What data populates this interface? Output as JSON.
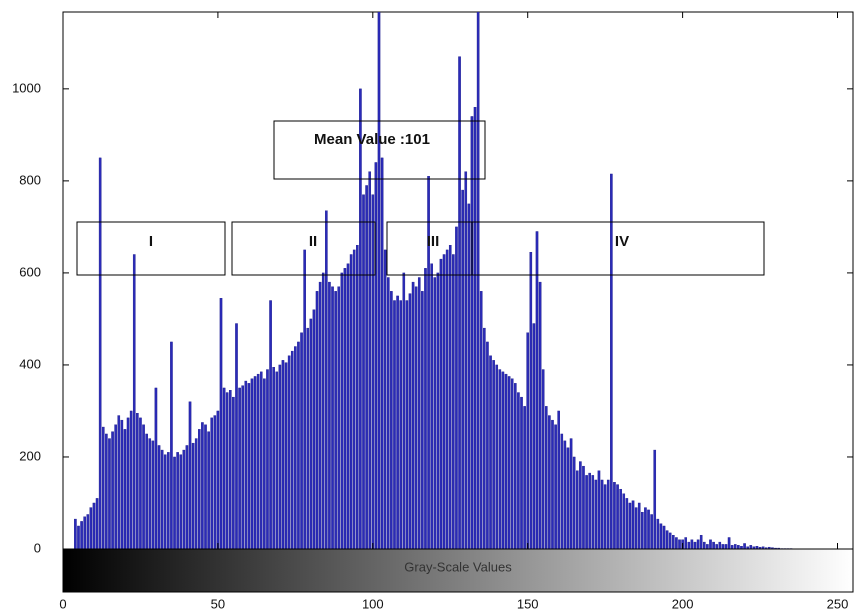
{
  "chart_data": {
    "type": "histogram",
    "xlabel": "Gray-Scale Values",
    "annotations": [
      {
        "text": "Mean Value :101"
      },
      {
        "text": "I"
      },
      {
        "text": "II"
      },
      {
        "text": "III"
      },
      {
        "text": "IV"
      }
    ],
    "color": "#2b2bb8",
    "xlim": [
      0,
      255
    ],
    "ylim": [
      0,
      1167
    ],
    "xticks": [
      0,
      50,
      100,
      150,
      200,
      250
    ],
    "yticks": [
      0,
      200,
      400,
      600,
      800,
      1000
    ],
    "x": [
      4,
      5,
      6,
      7,
      8,
      9,
      10,
      11,
      12,
      13,
      14,
      15,
      16,
      17,
      18,
      19,
      20,
      21,
      22,
      23,
      24,
      25,
      26,
      27,
      28,
      29,
      30,
      31,
      32,
      33,
      34,
      35,
      36,
      37,
      38,
      39,
      40,
      41,
      42,
      43,
      44,
      45,
      46,
      47,
      48,
      49,
      50,
      51,
      52,
      53,
      54,
      55,
      56,
      57,
      58,
      59,
      60,
      61,
      62,
      63,
      64,
      65,
      66,
      67,
      68,
      69,
      70,
      71,
      72,
      73,
      74,
      75,
      76,
      77,
      78,
      79,
      80,
      81,
      82,
      83,
      84,
      85,
      86,
      87,
      88,
      89,
      90,
      91,
      92,
      93,
      94,
      95,
      96,
      97,
      98,
      99,
      100,
      101,
      102,
      103,
      104,
      105,
      106,
      107,
      108,
      109,
      110,
      111,
      112,
      113,
      114,
      115,
      116,
      117,
      118,
      119,
      120,
      121,
      122,
      123,
      124,
      125,
      126,
      127,
      128,
      129,
      130,
      131,
      132,
      133,
      134,
      135,
      136,
      137,
      138,
      139,
      140,
      141,
      142,
      143,
      144,
      145,
      146,
      147,
      148,
      149,
      150,
      151,
      152,
      153,
      154,
      155,
      156,
      157,
      158,
      159,
      160,
      161,
      162,
      163,
      164,
      165,
      166,
      167,
      168,
      169,
      170,
      171,
      172,
      173,
      174,
      175,
      176,
      177,
      178,
      179,
      180,
      181,
      182,
      183,
      184,
      185,
      186,
      187,
      188,
      189,
      190,
      191,
      192,
      193,
      194,
      195,
      196,
      197,
      198,
      199,
      200,
      201,
      202,
      203,
      204,
      205,
      206,
      207,
      208,
      209,
      210,
      211,
      212,
      213,
      214,
      215,
      216,
      217,
      218,
      219,
      220,
      221,
      222,
      223,
      224,
      225,
      226,
      227,
      228,
      229,
      230,
      231,
      232,
      233,
      234,
      235
    ],
    "values": [
      65,
      50,
      60,
      70,
      75,
      90,
      100,
      110,
      850,
      265,
      250,
      240,
      255,
      270,
      290,
      280,
      260,
      285,
      300,
      640,
      295,
      285,
      270,
      250,
      240,
      235,
      350,
      225,
      215,
      205,
      210,
      450,
      200,
      210,
      205,
      215,
      225,
      320,
      230,
      240,
      260,
      275,
      270,
      255,
      285,
      290,
      300,
      545,
      350,
      340,
      345,
      330,
      490,
      350,
      355,
      365,
      360,
      370,
      375,
      380,
      385,
      370,
      390,
      540,
      395,
      385,
      400,
      410,
      405,
      420,
      430,
      440,
      450,
      470,
      650,
      480,
      500,
      520,
      560,
      580,
      600,
      735,
      580,
      570,
      560,
      570,
      600,
      610,
      620,
      640,
      650,
      660,
      1000,
      770,
      790,
      820,
      770,
      840,
      1200,
      850,
      650,
      590,
      560,
      540,
      550,
      540,
      600,
      540,
      555,
      580,
      570,
      590,
      560,
      610,
      810,
      620,
      590,
      600,
      630,
      640,
      650,
      660,
      640,
      700,
      1070,
      780,
      820,
      750,
      940,
      960,
      1200,
      560,
      480,
      450,
      420,
      410,
      400,
      390,
      385,
      380,
      375,
      370,
      360,
      340,
      330,
      310,
      470,
      645,
      490,
      690,
      580,
      390,
      310,
      290,
      280,
      270,
      300,
      250,
      235,
      220,
      240,
      200,
      170,
      190,
      180,
      160,
      165,
      160,
      150,
      170,
      150,
      140,
      150,
      815,
      145,
      140,
      130,
      120,
      110,
      100,
      105,
      90,
      100,
      80,
      90,
      85,
      75,
      215,
      65,
      55,
      50,
      40,
      35,
      30,
      25,
      20,
      20,
      25,
      15,
      20,
      15,
      20,
      30,
      15,
      10,
      20,
      15,
      10,
      15,
      10,
      10,
      25,
      8,
      10,
      8,
      6,
      12,
      5,
      8,
      5,
      6,
      4,
      5,
      3,
      4,
      3,
      2,
      2,
      1,
      1,
      1,
      1
    ]
  }
}
